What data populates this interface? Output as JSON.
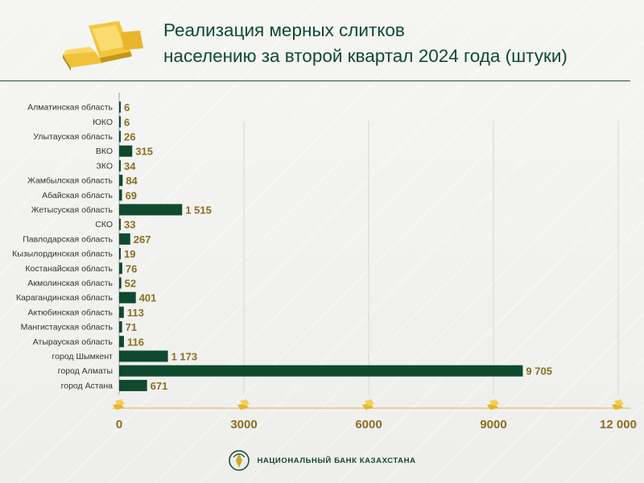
{
  "header": {
    "title_line1": "Реализация мерных слитков",
    "title_line2": "населению за второй квартал 2024 года (штуки)"
  },
  "footer": {
    "bank_name": "НАЦИОНАЛЬНЫЙ БАНК КАЗАХСТАНА"
  },
  "colors": {
    "bar": "#0f4a2e",
    "label": "#8a7020",
    "title": "#0f4a2e",
    "gold": "#e7b52a"
  },
  "chart_data": {
    "type": "bar",
    "orientation": "horizontal",
    "categories": [
      "Алматинская область",
      "ЮКО",
      "Улытауская  область",
      "ВКО",
      "ЗКО",
      "Жамбылская  область",
      "Абайская  область",
      "Жетысуская  область",
      "СКО",
      "Павлодарская область",
      "Кызылординская область",
      "Костанайская область",
      "Акмолинская область",
      "Карагандинская область",
      "Актюбинская область",
      "Мангистауская область",
      "Атырауская область",
      "город Шымкент",
      "город Алматы",
      "город Астана"
    ],
    "values": [
      6,
      6,
      26,
      315,
      34,
      84,
      69,
      1515,
      33,
      267,
      19,
      76,
      52,
      401,
      113,
      71,
      116,
      1173,
      9705,
      671
    ],
    "value_labels": [
      "6",
      "6",
      "26",
      "315",
      "34",
      "84",
      "69",
      "1 515",
      "33",
      "267",
      "19",
      "76",
      "52",
      "401",
      "113",
      "71",
      "116",
      "1 173",
      "9 705",
      "671"
    ],
    "xlim": [
      0,
      12000
    ],
    "xticks": [
      0,
      3000,
      6000,
      9000,
      12000
    ],
    "xtick_labels": [
      "0",
      "3000",
      "6000",
      "9000",
      "12 000"
    ],
    "grid": true
  }
}
